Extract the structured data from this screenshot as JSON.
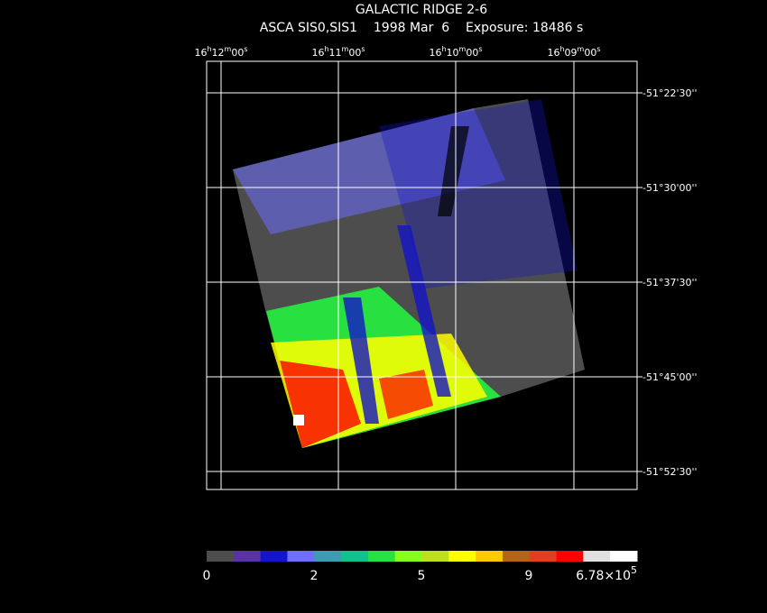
{
  "header": {
    "title": "GALACTIC RIDGE 2-6",
    "subtitle": "ASCA SIS0,SIS1    1998 Mar  6    Exposure: 18486 s"
  },
  "ra_ticks": [
    [
      "16",
      "h",
      "12",
      "m",
      "00",
      "s"
    ],
    [
      "16",
      "h",
      "11",
      "m",
      "00",
      "s"
    ],
    [
      "16",
      "h",
      "10",
      "m",
      "00",
      "s"
    ],
    [
      "16",
      "h",
      "09",
      "m",
      "00",
      "s"
    ]
  ],
  "dec_ticks": [
    "-51°22'30''",
    "-51°30'00''",
    "-51°37'30''",
    "-51°45'00''",
    "-51°52'30''"
  ],
  "colorbar": {
    "colors": [
      "#4d4d4d",
      "#5a32a8",
      "#1414c8",
      "#6e6eff",
      "#3c9cb4",
      "#14c08c",
      "#28e040",
      "#84ff20",
      "#bce020",
      "#ffff00",
      "#ffc800",
      "#b46414",
      "#e04020",
      "#ff0000",
      "#e0e0e0",
      "#ffffff"
    ],
    "labels": [
      "0",
      "2",
      "5",
      "9"
    ],
    "max_label": {
      "mantissa": "6.78×10",
      "exponent": "5"
    }
  }
}
